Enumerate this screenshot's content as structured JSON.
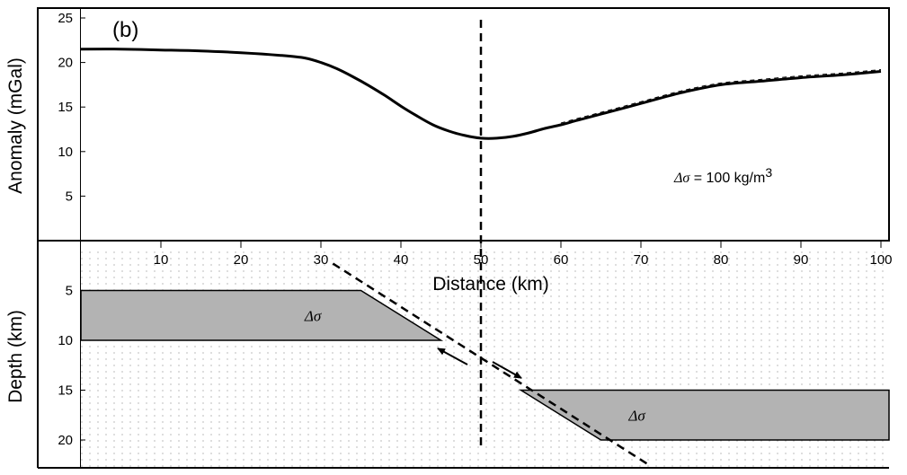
{
  "chart_data": [
    {
      "type": "line",
      "panel_label": "(b)",
      "ylabel": "Anomaly (mGal)",
      "ylim": [
        0,
        25
      ],
      "xlim": [
        0,
        100
      ],
      "yticks": [
        5,
        10,
        15,
        20,
        25
      ],
      "reference_line_x": 50,
      "annotation": {
        "symbol": "Δσ",
        "text": " = 100 kg/m",
        "superscript": "3"
      },
      "series": [
        {
          "x": [
            0,
            5,
            10,
            15,
            20,
            25,
            28,
            30,
            32,
            34,
            36,
            38,
            40,
            42,
            44,
            46,
            48,
            50,
            52,
            54,
            56,
            58,
            60,
            62,
            65,
            70,
            75,
            80,
            85,
            90,
            95,
            100
          ],
          "y": [
            21.5,
            21.5,
            21.4,
            21.3,
            21.1,
            20.8,
            20.5,
            20.0,
            19.3,
            18.4,
            17.4,
            16.3,
            15.1,
            14.0,
            13.0,
            12.3,
            11.8,
            11.5,
            11.5,
            11.7,
            12.1,
            12.6,
            13.0,
            13.5,
            14.2,
            15.4,
            16.6,
            17.5,
            17.9,
            18.3,
            18.6,
            19.0
          ]
        }
      ]
    },
    {
      "type": "area",
      "xlabel": "Distance (km)",
      "ylabel": "Depth (km)",
      "xlim": [
        0,
        100
      ],
      "ylim": [
        0,
        22
      ],
      "xticks": [
        10,
        20,
        30,
        40,
        50,
        60,
        70,
        80,
        90,
        100
      ],
      "yticks": [
        5,
        10,
        15,
        20
      ],
      "reference_line_x": 50,
      "fault_trace": [
        [
          31.5,
          2.3
        ],
        [
          71,
          22.5
        ]
      ],
      "blocks": [
        {
          "label": "Δσ",
          "polygon": [
            [
              0,
              5
            ],
            [
              35,
              5
            ],
            [
              45,
              10
            ],
            [
              0,
              10
            ]
          ]
        },
        {
          "label": "Δσ",
          "polygon": [
            [
              55,
              15
            ],
            [
              100,
              15
            ],
            [
              100,
              20
            ],
            [
              65,
              20
            ]
          ]
        }
      ]
    }
  ]
}
